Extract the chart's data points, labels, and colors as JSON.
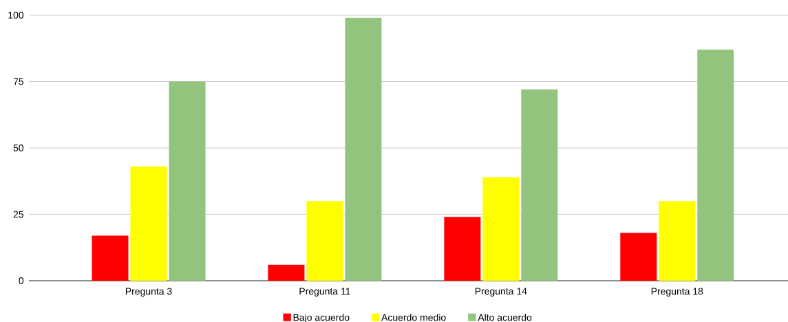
{
  "chart_data": {
    "type": "bar",
    "categories": [
      "Pregunta 3",
      "Pregunta 11",
      "Pregunta 14",
      "Pregunta 18"
    ],
    "series": [
      {
        "name": "Bajo acuerdo",
        "color": "#ff0000",
        "values": [
          17,
          6,
          24,
          18
        ]
      },
      {
        "name": "Acuerdo medio",
        "color": "#ffff00",
        "values": [
          43,
          30,
          39,
          30
        ]
      },
      {
        "name": "Alto acuerdo",
        "color": "#93c47d",
        "values": [
          75,
          99,
          72,
          87
        ]
      }
    ],
    "ylim": [
      0,
      100
    ],
    "yticks": [
      0,
      25,
      50,
      75,
      100
    ],
    "grid": "y",
    "legend": "bottom"
  }
}
